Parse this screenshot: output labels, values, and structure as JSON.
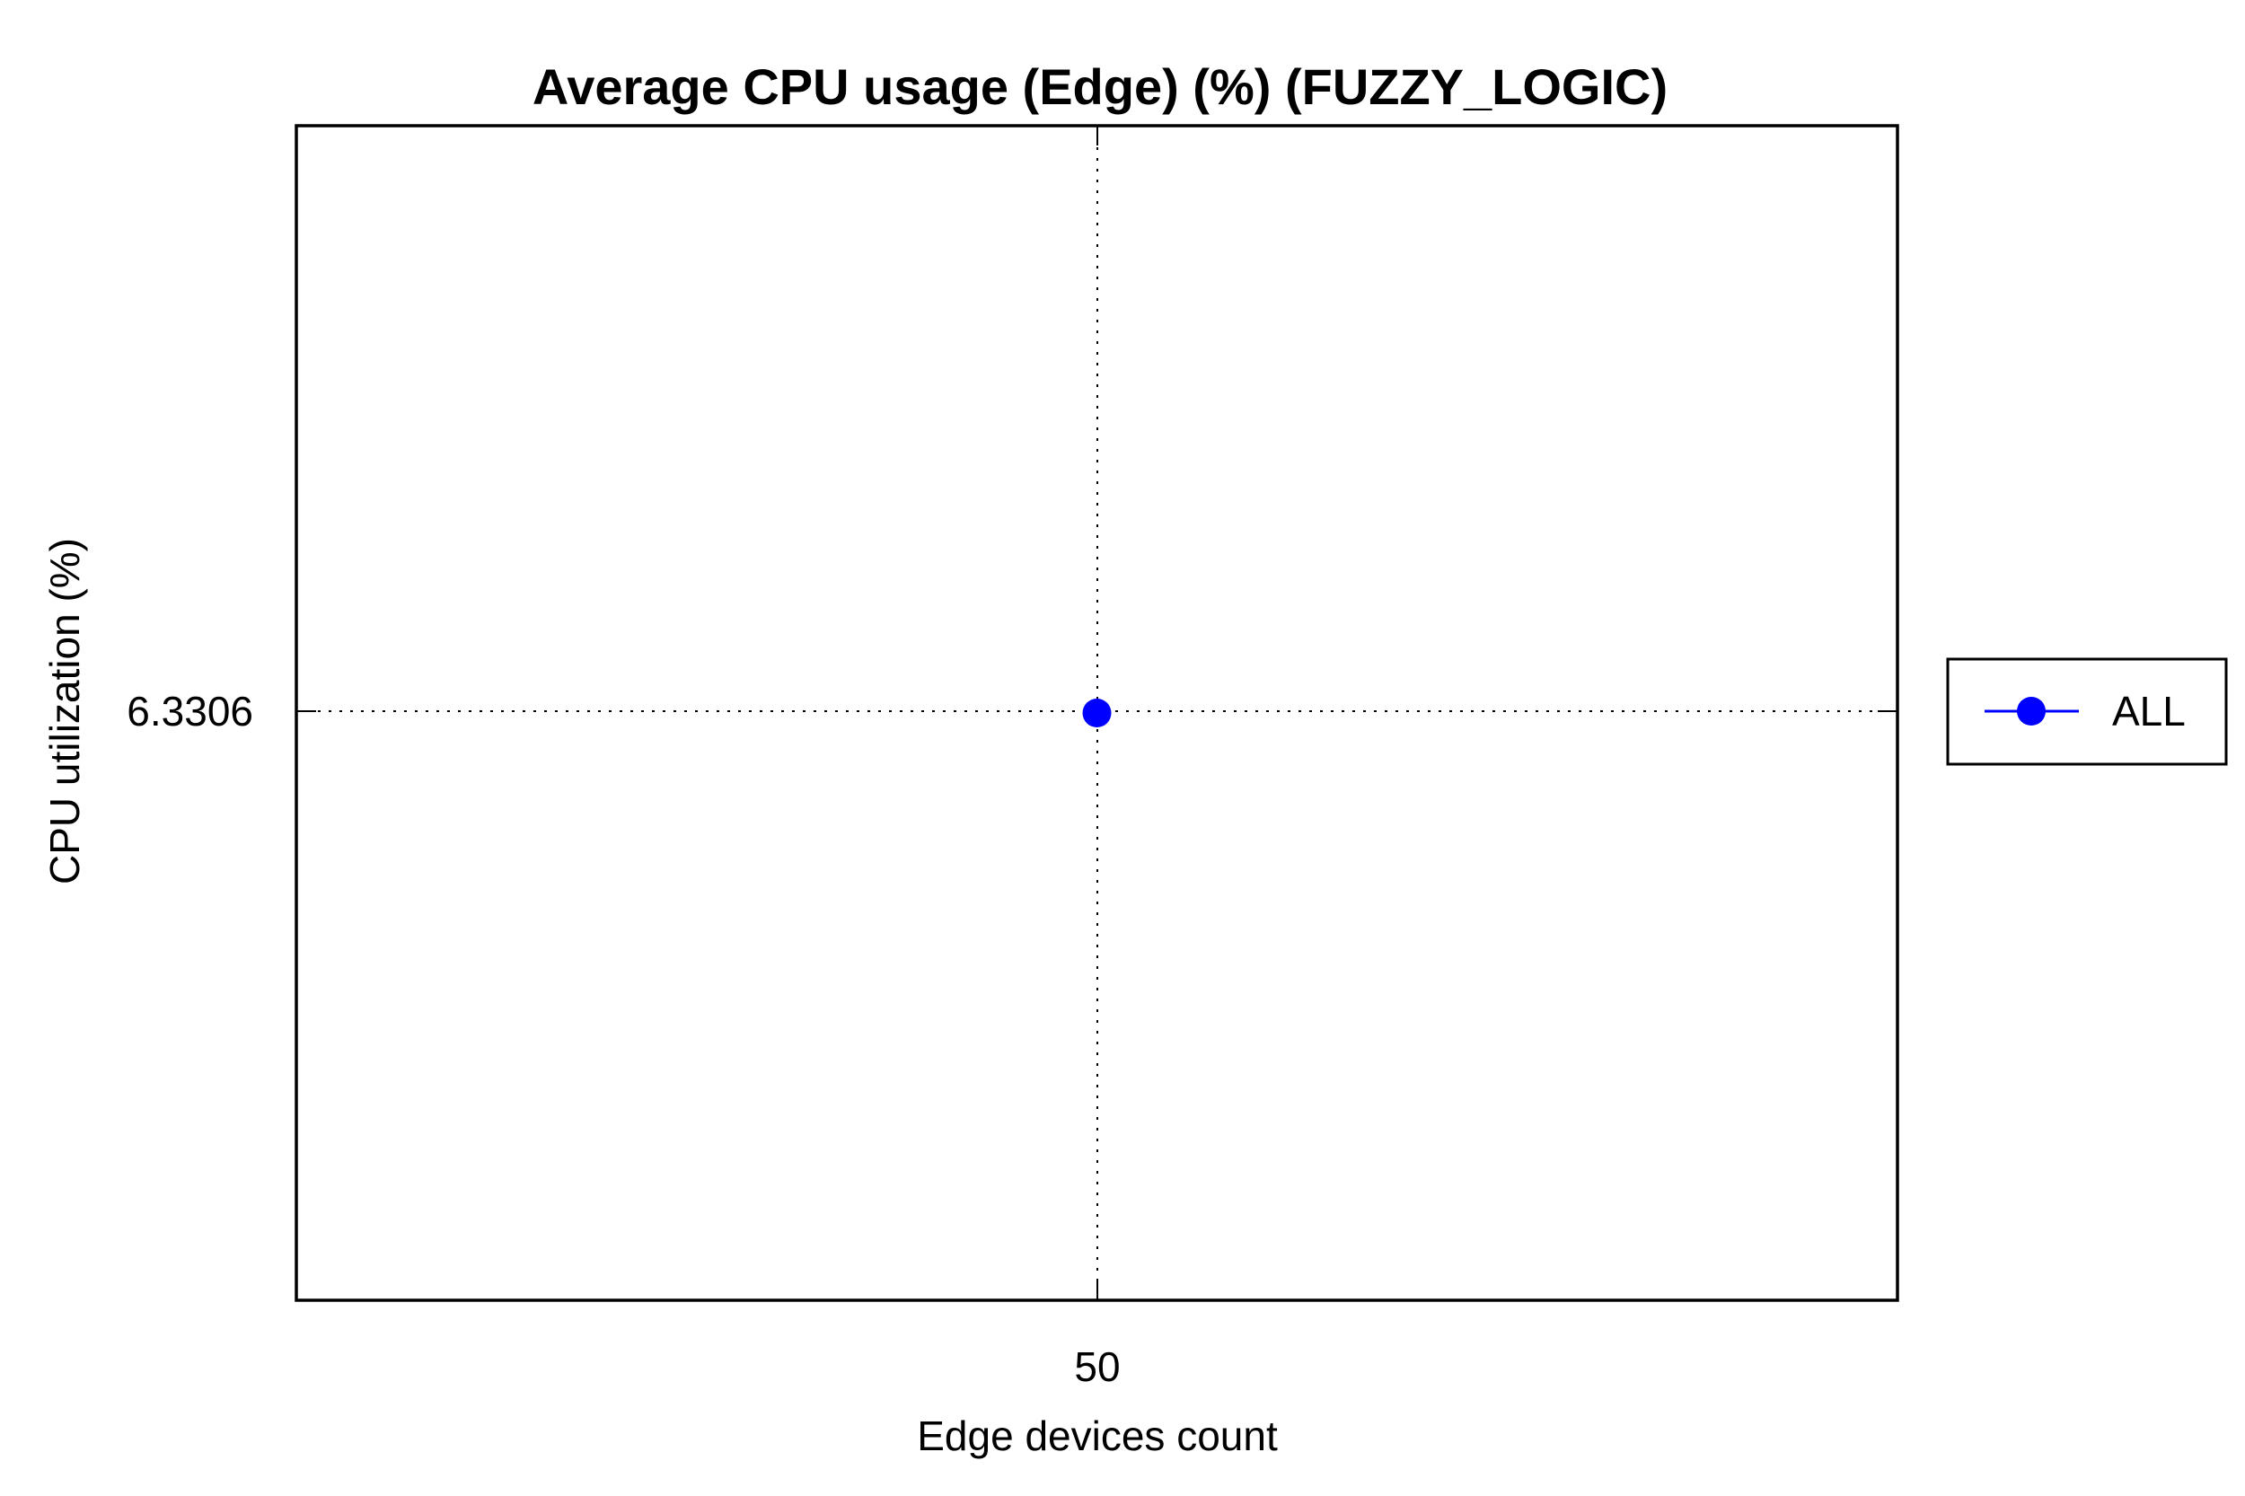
{
  "chart_data": {
    "type": "line",
    "title": "Average CPU usage (Edge) (%) (FUZZY_LOGIC)",
    "xlabel": "Edge devices count",
    "ylabel": "CPU utilization (%)",
    "x_ticks": [
      "50"
    ],
    "y_ticks": [
      "6.3306"
    ],
    "x": [
      50
    ],
    "series": [
      {
        "name": "ALL",
        "color": "#0000ff",
        "marker": "circle",
        "values": [
          6.3306
        ]
      }
    ],
    "grid": true,
    "legend_position": "right"
  }
}
